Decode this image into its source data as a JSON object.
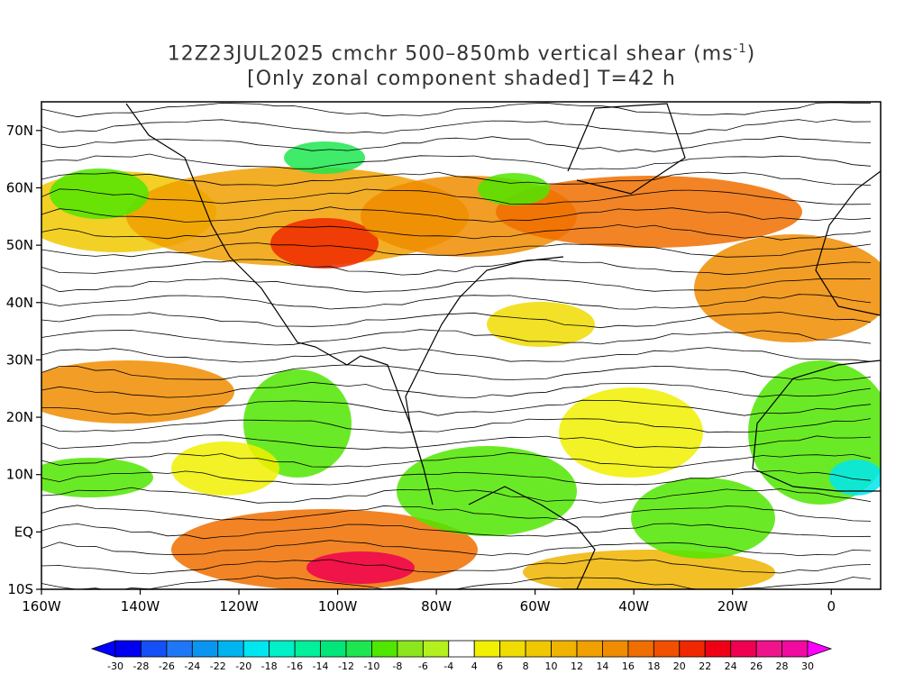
{
  "title": {
    "line1_prefix": "12Z23JUL2025 cmchr 500–850mb vertical shear (ms",
    "line1_sup": "-1",
    "line1_suffix": ")",
    "line2": "[Only zonal component shaded] T=42 h"
  },
  "map": {
    "lat_labels": [
      "70N",
      "60N",
      "50N",
      "40N",
      "30N",
      "20N",
      "10N",
      "EQ",
      "10S"
    ],
    "lat_values": [
      70,
      60,
      50,
      40,
      30,
      20,
      10,
      0,
      -10
    ],
    "lon_labels": [
      "160W",
      "140W",
      "120W",
      "100W",
      "80W",
      "60W",
      "40W",
      "20W",
      "0"
    ],
    "lon_values": [
      -160,
      -140,
      -120,
      -100,
      -80,
      -60,
      -40,
      -20,
      0
    ],
    "lon_range": [
      -160,
      10
    ],
    "lat_range": [
      -10,
      75
    ]
  },
  "colorbar": {
    "labels": [
      "-30",
      "-28",
      "-26",
      "-24",
      "-22",
      "-20",
      "-18",
      "-16",
      "-14",
      "-12",
      "-10",
      "-8",
      "-6",
      "-4",
      "4",
      "6",
      "8",
      "10",
      "12",
      "14",
      "16",
      "18",
      "20",
      "22",
      "24",
      "26",
      "28",
      "30"
    ],
    "colors": [
      "#0000f0",
      "#1450f5",
      "#1e78f5",
      "#0a96f0",
      "#00b4f0",
      "#00e6f0",
      "#00f0c8",
      "#00f09b",
      "#00e678",
      "#1ee650",
      "#50e600",
      "#8ce61e",
      "#b4f01e",
      "#ffffff",
      "#f0f000",
      "#f0dc00",
      "#f0c800",
      "#f0b400",
      "#f0a000",
      "#f08c00",
      "#f06e00",
      "#f05000",
      "#f02800",
      "#f00014",
      "#f00050",
      "#f0148c",
      "#f00aa0"
    ],
    "left_arrow_color": "#0000ff",
    "right_arrow_color": "#ff00ff"
  }
}
